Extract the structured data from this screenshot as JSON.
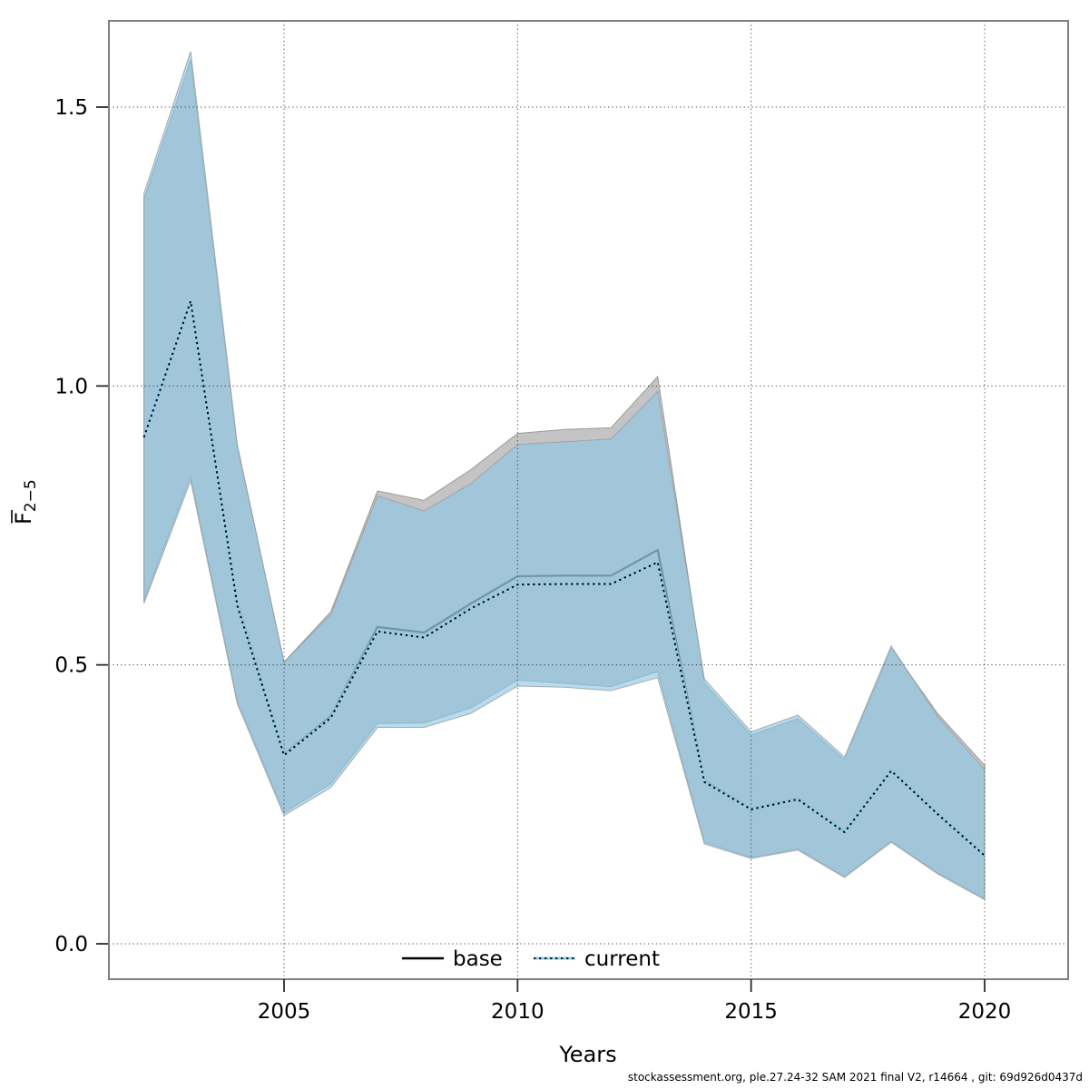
{
  "chart_data": {
    "type": "area",
    "title": "",
    "xlabel": "Years",
    "ylabel": {
      "letter": "F",
      "overbar": true,
      "subscript": "2−5",
      "plain": "F̄ 2−5"
    },
    "x": [
      2002,
      2003,
      2004,
      2005,
      2006,
      2007,
      2008,
      2009,
      2010,
      2011,
      2012,
      2013,
      2014,
      2015,
      2016,
      2017,
      2018,
      2019,
      2020
    ],
    "xticks": {
      "values": [
        2005,
        2010,
        2015,
        2020
      ],
      "labels": [
        "2005",
        "2010",
        "2015",
        "2020"
      ]
    },
    "yticks": {
      "values": [
        0.0,
        0.5,
        1.0,
        1.5
      ],
      "labels": [
        "0.0",
        "0.5",
        "1.0",
        "1.5"
      ]
    },
    "xlim": [
      2001.25,
      2021.8
    ],
    "ylim": [
      -0.06,
      1.65
    ],
    "grid": true,
    "legend": {
      "position": "bottom-center",
      "items": [
        {
          "label": "base",
          "line": "solid",
          "color": "#000000"
        },
        {
          "label": "current",
          "line": "dotted",
          "color": "#93cdeb"
        }
      ]
    },
    "series": [
      {
        "name": "base",
        "values": [
          0.908,
          1.152,
          0.61,
          0.34,
          0.408,
          0.568,
          0.558,
          0.61,
          0.659,
          0.66,
          0.66,
          0.706,
          0.292,
          0.242,
          0.26,
          0.201,
          0.311,
          0.233,
          0.159
        ],
        "ci_lower": [
          0.615,
          0.838,
          0.435,
          0.235,
          0.287,
          0.395,
          0.396,
          0.423,
          0.473,
          0.467,
          0.461,
          0.488,
          0.182,
          0.155,
          0.17,
          0.121,
          0.184,
          0.127,
          0.081
        ],
        "ci_upper": [
          1.335,
          1.585,
          0.89,
          0.505,
          0.595,
          0.812,
          0.795,
          0.85,
          0.915,
          0.922,
          0.925,
          1.017,
          0.468,
          0.374,
          0.404,
          0.33,
          0.53,
          0.412,
          0.32
        ],
        "band_color": "#c4c4c5"
      },
      {
        "name": "current",
        "values": [
          0.908,
          1.152,
          0.606,
          0.338,
          0.405,
          0.56,
          0.549,
          0.601,
          0.644,
          0.645,
          0.645,
          0.684,
          0.29,
          0.241,
          0.259,
          0.2,
          0.31,
          0.232,
          0.158
        ],
        "ci_lower": [
          0.61,
          0.83,
          0.43,
          0.23,
          0.28,
          0.388,
          0.388,
          0.413,
          0.462,
          0.46,
          0.454,
          0.477,
          0.179,
          0.153,
          0.168,
          0.119,
          0.182,
          0.125,
          0.079
        ],
        "ci_upper": [
          1.345,
          1.6,
          0.895,
          0.505,
          0.59,
          0.803,
          0.776,
          0.825,
          0.895,
          0.9,
          0.905,
          0.99,
          0.475,
          0.38,
          0.41,
          0.335,
          0.534,
          0.407,
          0.312
        ],
        "band_color": "rgba(139,199,231,0.62)"
      }
    ],
    "footer": "stockassessment.org, ple.27.24-32 SAM 2021 final V2, r14664 , git: 69d926d0437d"
  },
  "style_colors": {
    "plot_border": "#7f7f7f",
    "gridline": "#222222",
    "tick": "#2b2b2b",
    "base_line": "rgba(0,0,0,0.65)",
    "current_line_under": "#93cdeb",
    "current_line_dots": "#0a0a0a",
    "band_stroke": "#9a9a9a"
  }
}
